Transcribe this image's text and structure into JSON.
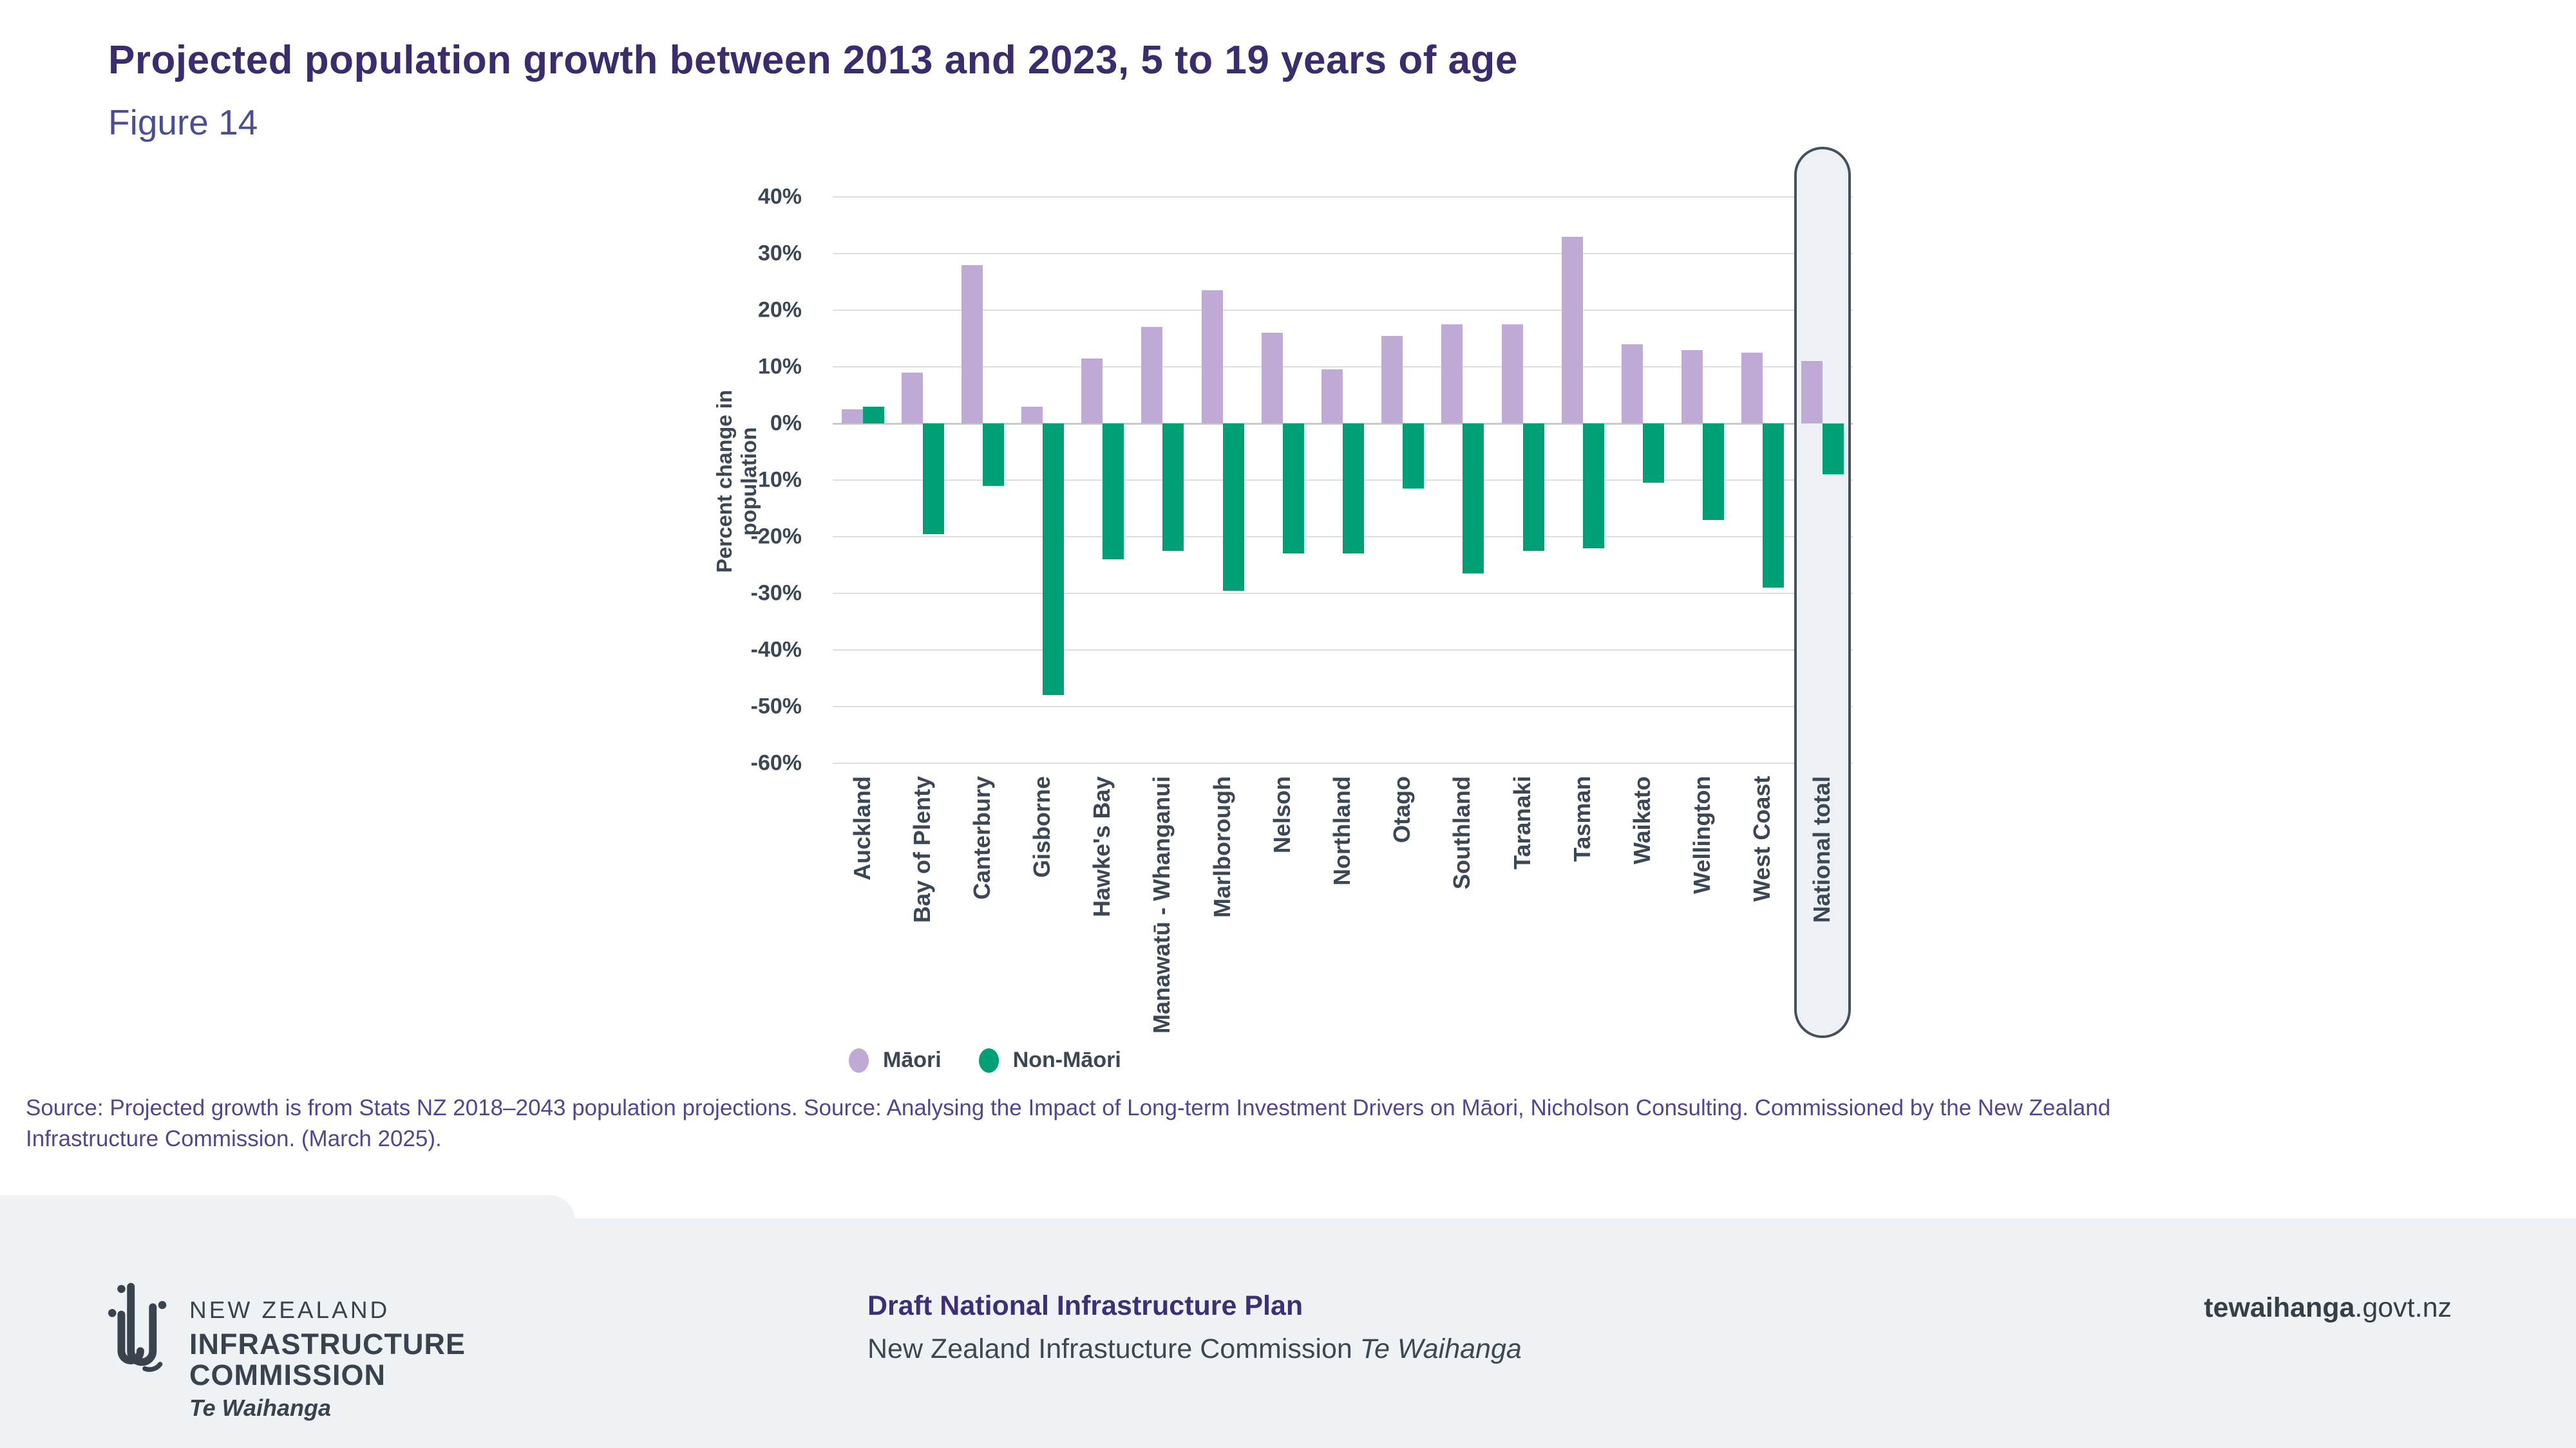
{
  "header": {
    "title": "Projected population growth between 2013 and 2023, 5 to 19 years of age",
    "figure_label": "Figure 14"
  },
  "chart_data": {
    "type": "bar",
    "title": "Projected population growth between 2013 and 2023, 5 to 19 years of age",
    "xlabel": "",
    "ylabel": "Percent change in population",
    "ylim": [
      -60,
      40
    ],
    "ytick_step": 10,
    "ytick_suffix": "%",
    "grid": true,
    "legend_position": "bottom",
    "categories": [
      "Auckland",
      "Bay of Plenty",
      "Canterbury",
      "Gisborne",
      "Hawke's Bay",
      "Manawatū - Whanganui",
      "Marlborough",
      "Nelson",
      "Northland",
      "Otago",
      "Southland",
      "Taranaki",
      "Tasman",
      "Waikato",
      "Wellington",
      "West Coast",
      "National total"
    ],
    "series": [
      {
        "name": "Māori",
        "color": "#bfa9d5",
        "values": [
          2.5,
          9,
          28,
          3,
          11.5,
          17,
          23.5,
          16,
          9.5,
          15.5,
          17.5,
          17.5,
          33,
          14,
          13,
          12.5,
          11
        ]
      },
      {
        "name": "Non-Māori",
        "color": "#00a076",
        "values": [
          3,
          -19.5,
          -11,
          -48,
          -24,
          -22.5,
          -29.5,
          -23,
          -23,
          -11.5,
          -26.5,
          -22.5,
          -22,
          -10.5,
          -17,
          -29,
          -9
        ]
      }
    ],
    "highlight_category": "National total"
  },
  "source": {
    "line1": "Source: Projected growth is from Stats NZ 2018–2043 population projections. Source: Analysing the Impact of Long-term Investment Drivers on Māori, Nicholson Consulting. Commissioned by the New Zealand",
    "line2": "Infrastructure Commission. (March 2025)."
  },
  "footer": {
    "logo": {
      "line1": "NEW ZEALAND",
      "line2": "INFRASTRUCTURE",
      "line3": "COMMISSION",
      "line4": "Te Waihanga"
    },
    "plan_title": "Draft National Infrastructure Plan",
    "plan_subtitle_regular": "New Zealand Infrastucture Commission ",
    "plan_subtitle_italic": "Te Waihanga",
    "website_bold": "tewaihanga",
    "website_regular": ".govt.nz"
  },
  "colors": {
    "maori_bar": "#bfa9d5",
    "non_maori_bar": "#00a076",
    "title_purple": "#3b2c6f",
    "figure_purple": "#4a4e94",
    "source_purple": "#4e4791",
    "axis_text": "#3b4754",
    "gridline": "#dcdfe2",
    "highlight_fill": "#edf1f6",
    "highlight_border": "#46505d",
    "footer_background": "#eff2f5",
    "footer_heading_purple": "#3c2f75",
    "footer_text": "#3e4853"
  }
}
